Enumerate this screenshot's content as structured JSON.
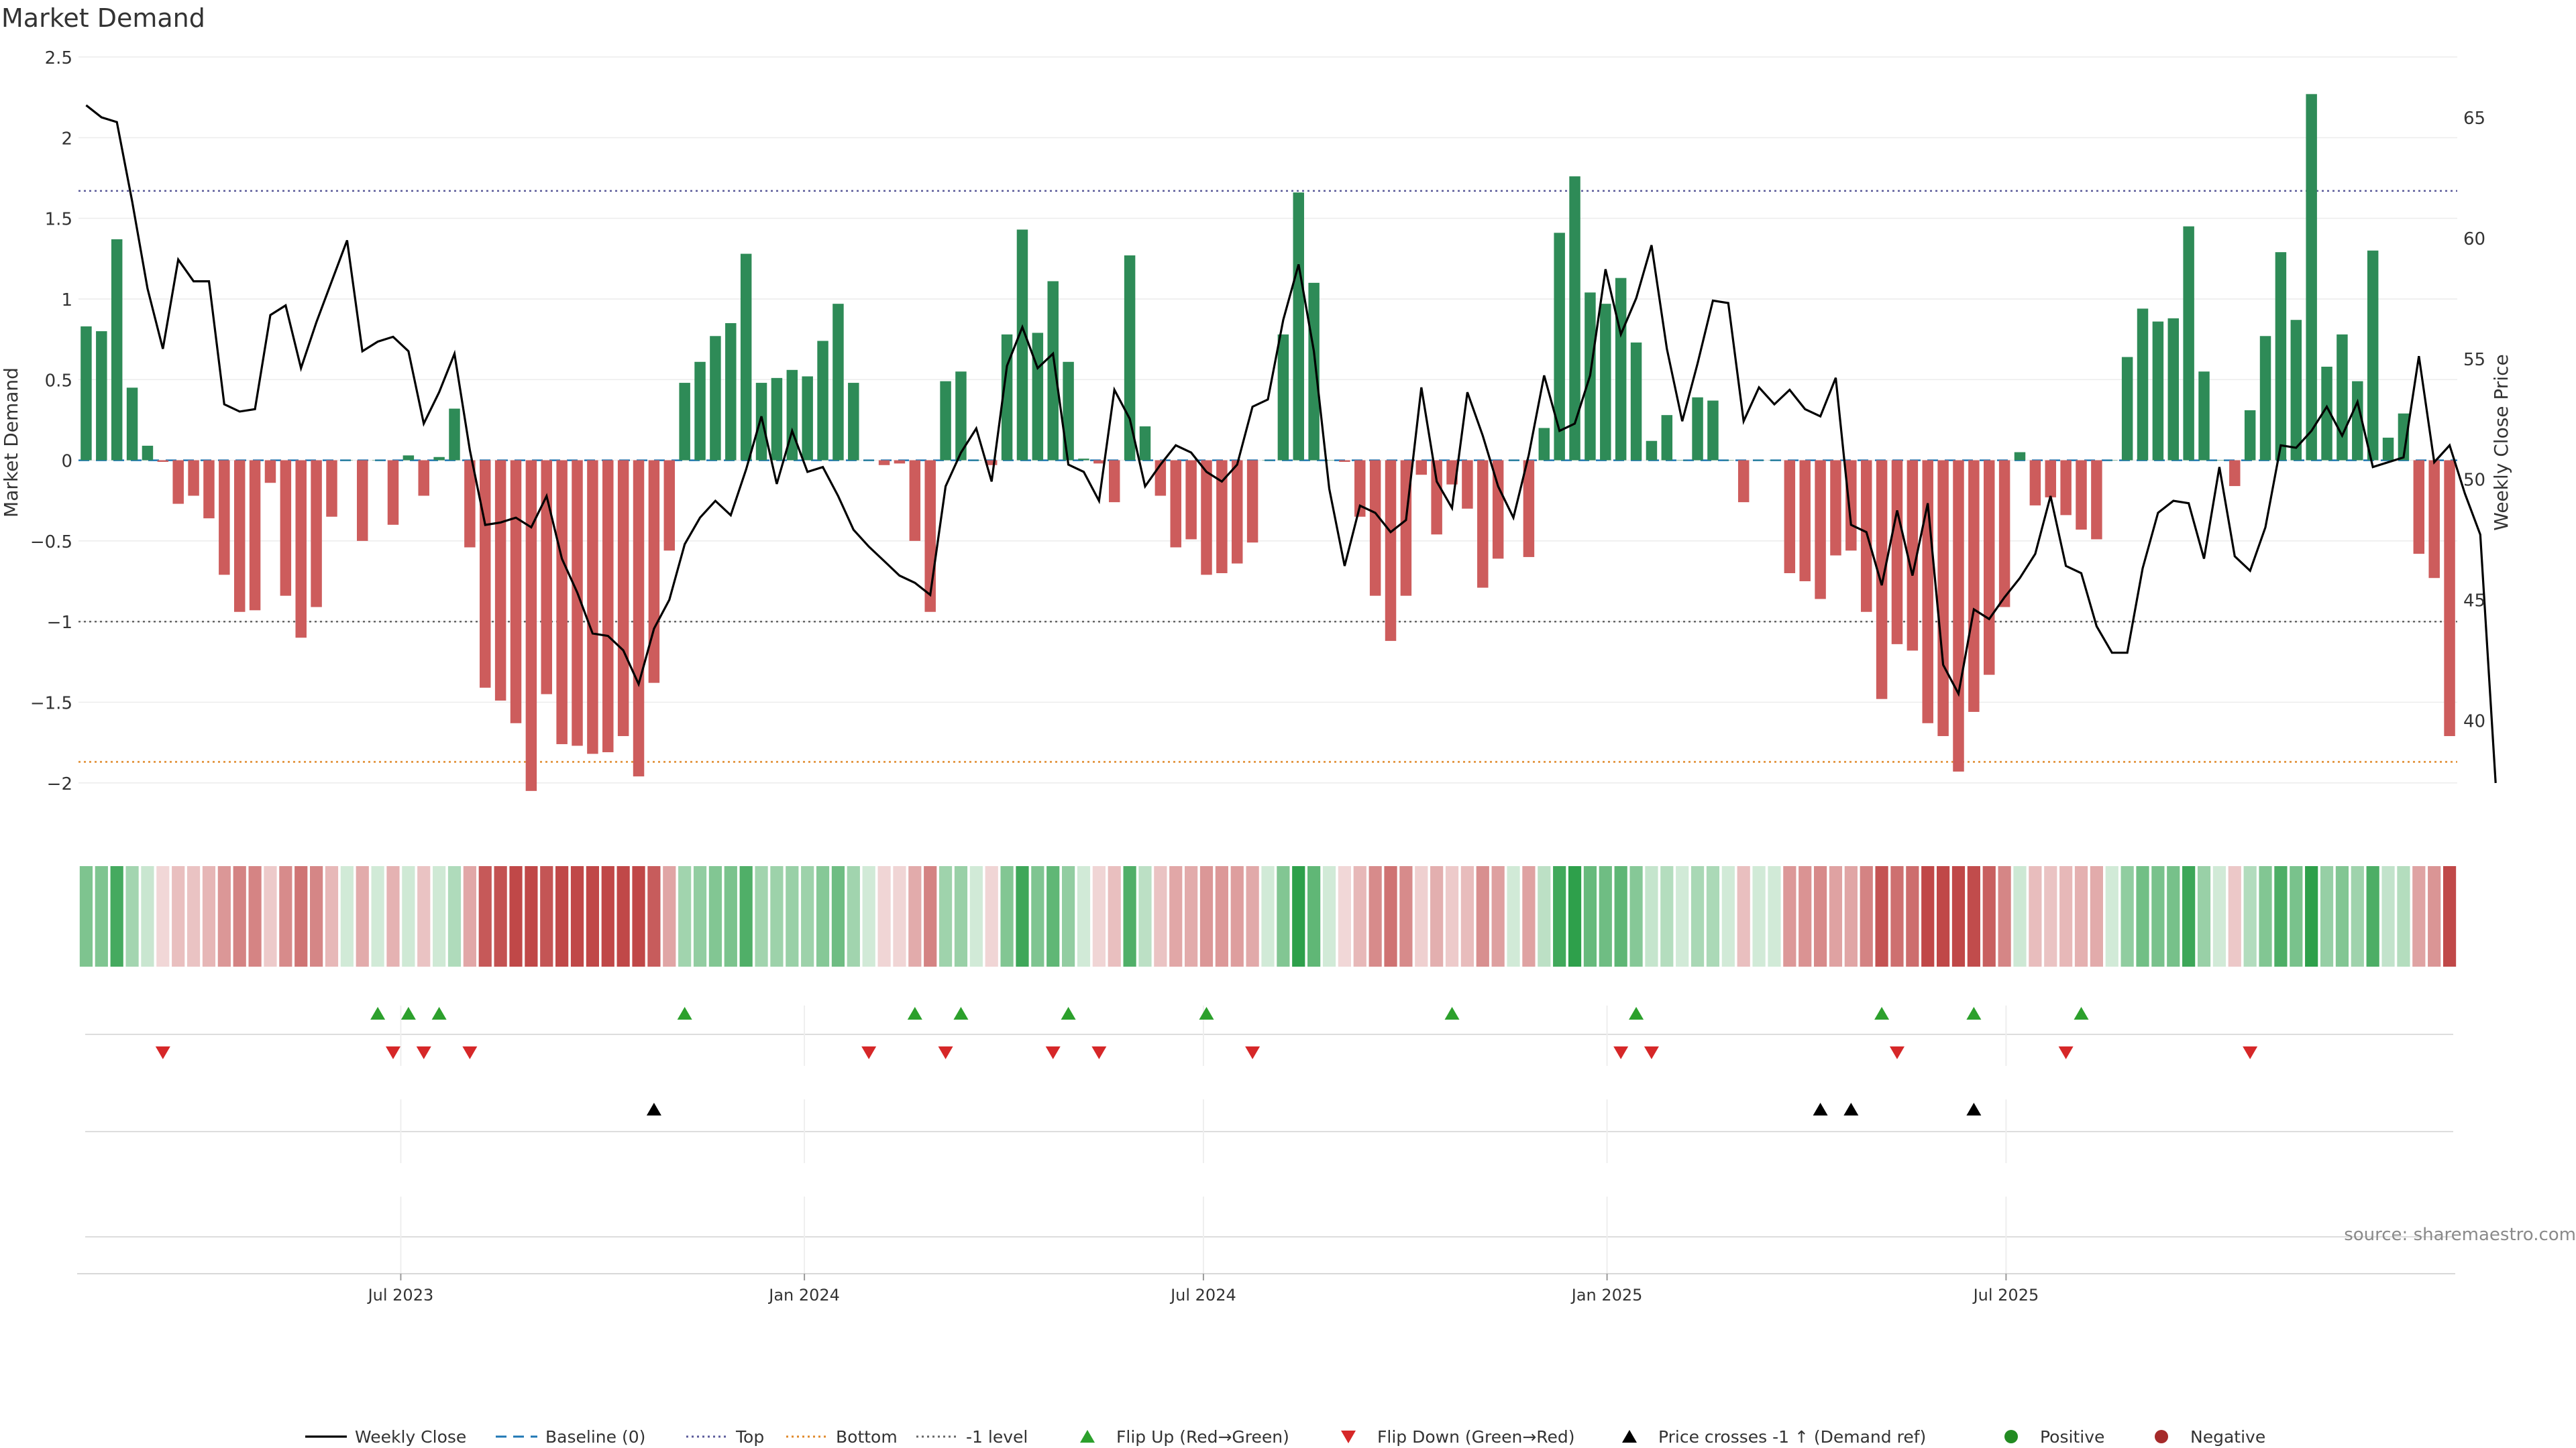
{
  "title": "Market Demand",
  "source": "source: sharemaestro.com",
  "colors": {
    "positive": "#2e8b57",
    "negative": "#cd5c5c",
    "price": "#000000",
    "baseline": "#1f77b4",
    "top": "#5b5b9a",
    "bottom": "#e08a2b",
    "minus_one": "#666666",
    "flip_up": "#2ca02c",
    "flip_down": "#d62728",
    "cross": "#000000"
  },
  "chart_data": {
    "type": "bar",
    "title": "Market Demand",
    "ylabel": "Market Demand",
    "y2label": "Weekly Close Price",
    "ylim": [
      -2.3,
      2.5
    ],
    "y2lim": [
      35.4,
      67.5
    ],
    "yticks": [
      {
        "v": 2.5,
        "label": "2.5"
      },
      {
        "v": 2,
        "label": "2"
      },
      {
        "v": 1.5,
        "label": "1.5"
      },
      {
        "v": 1,
        "label": "1"
      },
      {
        "v": 0.5,
        "label": "0.5"
      },
      {
        "v": 0,
        "label": "0"
      },
      {
        "v": -0.5,
        "label": "−0.5"
      },
      {
        "v": -1,
        "label": "−1"
      },
      {
        "v": -1.5,
        "label": "−1.5"
      },
      {
        "v": -2,
        "label": "−2"
      }
    ],
    "y2ticks": [
      {
        "v": 65,
        "label": "65"
      },
      {
        "v": 60,
        "label": "60"
      },
      {
        "v": 55,
        "label": "55"
      },
      {
        "v": 50,
        "label": "50"
      },
      {
        "v": 45,
        "label": "45"
      },
      {
        "v": 40,
        "label": "40"
      }
    ],
    "xticks": [
      {
        "week": 20.5,
        "label": "Jul 2023"
      },
      {
        "week": 46.8,
        "label": "Jan 2024"
      },
      {
        "week": 72.8,
        "label": "Jul 2024"
      },
      {
        "week": 99.1,
        "label": "Jan 2025"
      },
      {
        "week": 125.1,
        "label": "Jul 2025"
      }
    ],
    "reference_lines": {
      "top": 1.67,
      "bottom": -1.87,
      "minus_one": -1,
      "baseline": 0
    },
    "demand": [
      0.83,
      0.8,
      1.37,
      0.45,
      0.09,
      -0.01,
      -0.27,
      -0.22,
      -0.36,
      -0.71,
      -0.94,
      -0.93,
      -0.14,
      -0.84,
      -1.1,
      -0.91,
      -0.35,
      0,
      -0.5,
      0,
      -0.4,
      0.03,
      -0.22,
      0.02,
      0.32,
      -0.54,
      -1.41,
      -1.49,
      -1.63,
      -2.05,
      -1.45,
      -1.76,
      -1.77,
      -1.82,
      -1.81,
      -1.71,
      -1.96,
      -1.38,
      -0.56,
      0.48,
      0.61,
      0.77,
      0.85,
      1.28,
      0.48,
      0.51,
      0.56,
      0.52,
      0.74,
      0.97,
      0.48,
      0,
      -0.03,
      -0.02,
      -0.5,
      -0.94,
      0.49,
      0.55,
      0,
      -0.03,
      0.78,
      1.43,
      0.79,
      1.11,
      0.61,
      0.01,
      -0.02,
      -0.26,
      1.27,
      0.21,
      -0.22,
      -0.54,
      -0.49,
      -0.71,
      -0.7,
      -0.64,
      -0.51,
      0,
      0.78,
      1.66,
      1.1,
      0,
      -0.01,
      -0.35,
      -0.84,
      -1.12,
      -0.84,
      -0.09,
      -0.46,
      -0.15,
      -0.3,
      -0.79,
      -0.61,
      0,
      -0.6,
      0.2,
      1.41,
      1.76,
      1.04,
      0.97,
      1.13,
      0.73,
      0.12,
      0.28,
      0,
      0.39,
      0.37,
      0,
      -0.26,
      0,
      0,
      -0.7,
      -0.75,
      -0.86,
      -0.59,
      -0.56,
      -0.94,
      -1.48,
      -1.14,
      -1.18,
      -1.63,
      -1.71,
      -1.93,
      -1.56,
      -1.33,
      -0.91,
      0.05,
      -0.28,
      -0.23,
      -0.34,
      -0.43,
      -0.49,
      0,
      0.64,
      0.94,
      0.86,
      0.88,
      1.45,
      0.55,
      0,
      -0.16,
      0.31,
      0.77,
      1.29,
      0.87,
      2.27,
      0.58,
      0.78,
      0.49,
      1.3,
      0.14,
      0.29,
      -0.58,
      -0.73,
      -1.71
    ],
    "close": [
      65.5,
      65.0,
      64.8,
      61.5,
      57.9,
      55.4,
      59.1,
      58.2,
      58.2,
      53.1,
      52.8,
      52.9,
      56.8,
      57.2,
      54.6,
      56.5,
      58.2,
      59.9,
      55.3,
      55.7,
      55.9,
      55.3,
      52.3,
      53.6,
      55.2,
      51.2,
      48.1,
      48.2,
      48.4,
      48.0,
      49.3,
      46.7,
      45.3,
      43.6,
      43.5,
      42.9,
      41.5,
      43.8,
      45.0,
      47.3,
      48.4,
      49.1,
      48.5,
      50.4,
      52.6,
      49.8,
      52.0,
      50.3,
      50.5,
      49.3,
      47.9,
      47.2,
      46.6,
      46.0,
      45.7,
      45.2,
      49.7,
      51.1,
      52.1,
      49.9,
      54.7,
      56.3,
      54.6,
      55.2,
      50.6,
      50.3,
      49.1,
      53.7,
      52.5,
      49.7,
      50.6,
      51.4,
      51.1,
      50.3,
      49.9,
      50.6,
      53.0,
      53.3,
      56.6,
      58.9,
      55.3,
      49.6,
      46.4,
      48.9,
      48.6,
      47.8,
      48.3,
      53.8,
      49.9,
      48.8,
      53.6,
      51.8,
      49.7,
      48.4,
      51.0,
      54.3,
      52.0,
      52.3,
      54.3,
      58.7,
      56.0,
      57.5,
      59.7,
      55.4,
      52.4,
      54.8,
      57.4,
      57.3,
      52.4,
      53.8,
      53.1,
      53.7,
      52.9,
      52.6,
      54.2,
      48.1,
      47.8,
      45.6,
      48.7,
      46.0,
      49.0,
      42.3,
      41.1,
      44.6,
      44.2,
      45.1,
      45.9,
      46.9,
      49.3,
      46.4,
      46.1,
      43.9,
      42.8,
      42.8,
      46.3,
      48.6,
      49.1,
      49.0,
      46.7,
      50.5,
      46.8,
      46.2,
      48.0,
      51.4,
      51.3,
      52.0,
      53.0,
      51.8,
      53.2,
      50.5,
      50.7,
      50.9,
      55.1,
      50.7,
      51.4,
      49.4,
      47.7,
      37.4
    ],
    "flip_up_weeks": [
      19,
      21,
      23,
      39,
      54,
      57,
      64,
      73,
      89,
      101,
      117,
      123,
      130
    ],
    "flip_down_weeks": [
      5,
      20,
      22,
      25,
      51,
      56,
      63,
      66,
      76,
      100,
      102,
      118,
      129,
      141
    ],
    "price_cross_weeks": [
      37,
      113,
      115,
      123
    ]
  },
  "legend": [
    {
      "kind": "line",
      "label": "Weekly Close"
    },
    {
      "kind": "dash",
      "label": "Baseline (0)"
    },
    {
      "kind": "dot-top",
      "label": "Top"
    },
    {
      "kind": "dot-bottom",
      "label": "Bottom"
    },
    {
      "kind": "dot-minus",
      "label": "-1 level"
    },
    {
      "kind": "tri-up-green",
      "label": "Flip Up (Red→Green)"
    },
    {
      "kind": "tri-down-red",
      "label": "Flip Down (Green→Red)"
    },
    {
      "kind": "tri-up-black",
      "label": "Price crosses -1 ↑ (Demand ref)"
    },
    {
      "kind": "circle-green",
      "label": "Positive"
    },
    {
      "kind": "circle-red",
      "label": "Negative"
    }
  ]
}
